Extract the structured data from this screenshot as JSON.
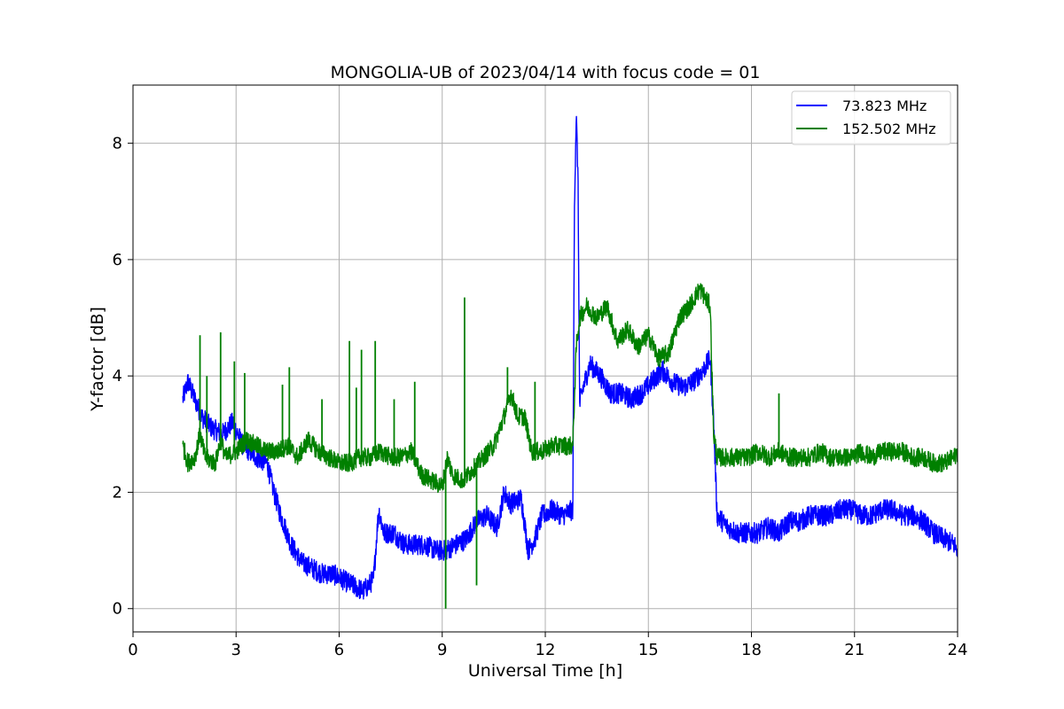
{
  "chart_data": {
    "type": "line",
    "title": "MONGOLIA-UB of 2023/04/14 with focus code = 01",
    "xlabel": "Universal Time [h]",
    "ylabel": "Y-factor [dB]",
    "xlim": [
      0,
      24
    ],
    "ylim": [
      -0.4,
      9.0
    ],
    "xticks": [
      0,
      3,
      6,
      9,
      12,
      15,
      18,
      21,
      24
    ],
    "yticks": [
      0,
      2,
      4,
      6,
      8
    ],
    "grid": true,
    "legend_position": "top-right",
    "series": [
      {
        "name": "73.823 MHz",
        "color": "#0000ff",
        "x": [
          1.45,
          1.6,
          1.8,
          2.0,
          2.3,
          2.6,
          2.9,
          3.2,
          3.6,
          3.9,
          4.1,
          4.3,
          4.6,
          4.9,
          5.2,
          5.5,
          5.8,
          6.1,
          6.4,
          6.7,
          7.0,
          7.15,
          7.3,
          7.6,
          7.9,
          8.2,
          8.5,
          8.8,
          9.1,
          9.4,
          9.7,
          10.0,
          10.3,
          10.6,
          10.8,
          11.0,
          11.3,
          11.5,
          11.7,
          11.9,
          12.2,
          12.5,
          12.8,
          12.85,
          12.9,
          12.95,
          13.0,
          13.1,
          13.3,
          13.6,
          13.9,
          14.2,
          14.5,
          14.8,
          15.1,
          15.4,
          15.7,
          16.0,
          16.3,
          16.6,
          16.8,
          16.9,
          17.0,
          17.3,
          17.6,
          17.9,
          18.2,
          18.5,
          18.8,
          19.1,
          19.4,
          19.7,
          20.0,
          20.3,
          20.6,
          20.9,
          21.2,
          21.5,
          21.8,
          22.1,
          22.4,
          22.7,
          23.0,
          23.3,
          23.6,
          23.9,
          24.0
        ],
        "y": [
          3.6,
          3.9,
          3.6,
          3.3,
          3.1,
          3.0,
          3.2,
          2.8,
          2.6,
          2.5,
          2.0,
          1.6,
          1.1,
          0.8,
          0.7,
          0.6,
          0.6,
          0.5,
          0.4,
          0.3,
          0.5,
          1.7,
          1.3,
          1.3,
          1.1,
          1.1,
          1.1,
          1.0,
          1.0,
          1.1,
          1.2,
          1.5,
          1.6,
          1.4,
          2.0,
          1.8,
          1.9,
          1.0,
          1.2,
          1.6,
          1.7,
          1.6,
          1.7,
          7.0,
          8.5,
          7.5,
          3.5,
          3.8,
          4.2,
          4.0,
          3.7,
          3.7,
          3.6,
          3.7,
          3.9,
          4.1,
          3.9,
          3.8,
          3.9,
          4.1,
          4.3,
          3.2,
          1.6,
          1.4,
          1.3,
          1.3,
          1.3,
          1.4,
          1.3,
          1.5,
          1.5,
          1.6,
          1.6,
          1.6,
          1.7,
          1.7,
          1.6,
          1.6,
          1.7,
          1.7,
          1.6,
          1.6,
          1.5,
          1.3,
          1.2,
          1.1,
          1.0
        ]
      },
      {
        "name": "152.502 MHz",
        "color": "#008000",
        "x": [
          1.45,
          1.6,
          1.8,
          1.95,
          2.1,
          2.4,
          2.55,
          2.7,
          3.0,
          3.3,
          3.6,
          3.9,
          4.2,
          4.5,
          4.8,
          5.1,
          5.4,
          5.7,
          6.0,
          6.3,
          6.6,
          6.9,
          7.2,
          7.5,
          7.8,
          8.1,
          8.4,
          8.7,
          9.0,
          9.15,
          9.3,
          9.6,
          9.9,
          10.2,
          10.5,
          10.8,
          11.0,
          11.2,
          11.4,
          11.6,
          11.9,
          12.2,
          12.5,
          12.8,
          12.9,
          13.0,
          13.2,
          13.5,
          13.8,
          14.1,
          14.4,
          14.7,
          15.0,
          15.3,
          15.6,
          15.9,
          16.2,
          16.5,
          16.8,
          16.9,
          17.0,
          17.3,
          17.6,
          17.9,
          18.2,
          18.5,
          18.8,
          19.1,
          19.4,
          19.7,
          20.0,
          20.3,
          20.6,
          20.9,
          21.2,
          21.5,
          21.8,
          22.1,
          22.4,
          22.7,
          23.0,
          23.3,
          23.6,
          23.9,
          24.0
        ],
        "y": [
          2.8,
          2.5,
          2.6,
          3.0,
          2.6,
          2.5,
          2.9,
          2.6,
          2.7,
          2.9,
          2.8,
          2.7,
          2.7,
          2.8,
          2.6,
          2.9,
          2.7,
          2.6,
          2.5,
          2.5,
          2.6,
          2.6,
          2.7,
          2.6,
          2.6,
          2.7,
          2.3,
          2.2,
          2.1,
          2.6,
          2.3,
          2.2,
          2.4,
          2.6,
          2.8,
          3.3,
          3.7,
          3.3,
          3.3,
          2.7,
          2.7,
          2.8,
          2.8,
          2.8,
          4.5,
          5.0,
          5.2,
          5.0,
          5.2,
          4.6,
          4.8,
          4.5,
          4.7,
          4.3,
          4.4,
          5.0,
          5.2,
          5.5,
          5.2,
          3.0,
          2.6,
          2.6,
          2.6,
          2.6,
          2.7,
          2.6,
          2.7,
          2.6,
          2.6,
          2.6,
          2.7,
          2.6,
          2.6,
          2.6,
          2.7,
          2.6,
          2.7,
          2.7,
          2.7,
          2.6,
          2.6,
          2.5,
          2.5,
          2.6,
          2.7
        ]
      }
    ],
    "spikes": [
      {
        "series": 1,
        "x": 1.95,
        "y": 4.7
      },
      {
        "series": 1,
        "x": 2.15,
        "y": 4.0
      },
      {
        "series": 1,
        "x": 2.55,
        "y": 4.75
      },
      {
        "series": 1,
        "x": 2.95,
        "y": 4.25
      },
      {
        "series": 1,
        "x": 3.25,
        "y": 4.05
      },
      {
        "series": 1,
        "x": 4.35,
        "y": 3.85
      },
      {
        "series": 1,
        "x": 4.55,
        "y": 4.15
      },
      {
        "series": 1,
        "x": 5.5,
        "y": 3.6
      },
      {
        "series": 1,
        "x": 6.3,
        "y": 4.6
      },
      {
        "series": 1,
        "x": 6.5,
        "y": 3.8
      },
      {
        "series": 1,
        "x": 6.65,
        "y": 4.45
      },
      {
        "series": 1,
        "x": 7.05,
        "y": 4.6
      },
      {
        "series": 1,
        "x": 7.6,
        "y": 3.6
      },
      {
        "series": 1,
        "x": 8.2,
        "y": 3.9
      },
      {
        "series": 1,
        "x": 9.1,
        "y": 0.0
      },
      {
        "series": 1,
        "x": 9.65,
        "y": 5.35
      },
      {
        "series": 1,
        "x": 10.0,
        "y": 0.4
      },
      {
        "series": 1,
        "x": 10.9,
        "y": 4.15
      },
      {
        "series": 1,
        "x": 11.7,
        "y": 3.9
      },
      {
        "series": 1,
        "x": 18.8,
        "y": 3.7
      }
    ]
  }
}
